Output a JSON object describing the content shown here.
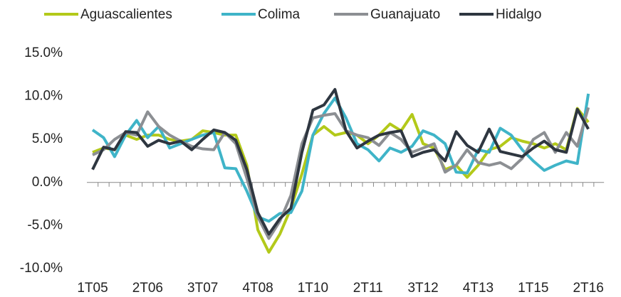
{
  "chart_data": {
    "type": "line",
    "categories": [
      "1T05",
      null,
      null,
      null,
      null,
      "2T06",
      null,
      null,
      null,
      null,
      "3T07",
      null,
      null,
      null,
      null,
      "4T08",
      null,
      null,
      null,
      null,
      "1T10",
      null,
      null,
      null,
      null,
      "2T11",
      null,
      null,
      null,
      null,
      "3T12",
      null,
      null,
      null,
      null,
      "4T13",
      null,
      null,
      null,
      null,
      "1T15",
      null,
      null,
      null,
      null,
      "2T16"
    ],
    "series": [
      {
        "name": "Aguascalientes",
        "color": "#b3c91a",
        "values": [
          3.5,
          4.0,
          3.8,
          5.5,
          5.0,
          5.5,
          5.5,
          5.0,
          4.8,
          5.0,
          6.0,
          5.8,
          5.5,
          5.5,
          2.0,
          -5.5,
          -8.1,
          -6.0,
          -3.0,
          1.0,
          5.5,
          6.5,
          5.5,
          5.8,
          5.5,
          4.5,
          5.5,
          6.8,
          6.0,
          7.9,
          4.5,
          4.0,
          1.5,
          2.0,
          0.6,
          2.0,
          3.8,
          4.2,
          5.2,
          4.8,
          4.5,
          4.0,
          4.5,
          3.8,
          8.6,
          7.0
        ]
      },
      {
        "name": "Colima",
        "color": "#3fb4c8",
        "values": [
          6.1,
          5.2,
          3.0,
          5.5,
          7.2,
          5.2,
          6.5,
          4.0,
          4.5,
          5.0,
          5.5,
          5.8,
          1.7,
          1.6,
          -1.0,
          -4.0,
          -4.5,
          -3.6,
          -3.5,
          -1.0,
          5.5,
          8.0,
          9.8,
          7.5,
          4.5,
          3.8,
          2.5,
          4.0,
          3.5,
          4.2,
          6.0,
          5.5,
          4.5,
          1.2,
          1.1,
          3.8,
          3.5,
          6.3,
          5.5,
          3.8,
          2.5,
          1.4,
          2.0,
          2.5,
          2.2,
          10.3
        ]
      },
      {
        "name": "Guanajuato",
        "color": "#8c8f93",
        "values": [
          3.2,
          3.8,
          5.0,
          5.8,
          5.5,
          8.2,
          6.5,
          5.5,
          4.8,
          4.2,
          3.9,
          3.8,
          5.8,
          4.5,
          0.5,
          -4.0,
          -6.5,
          -4.5,
          -1.5,
          4.5,
          7.5,
          7.8,
          8.0,
          6.0,
          5.5,
          5.2,
          4.3,
          5.8,
          5.0,
          3.5,
          4.0,
          4.5,
          1.2,
          2.0,
          3.8,
          2.3,
          2.0,
          2.3,
          1.6,
          2.8,
          5.0,
          5.8,
          3.5,
          5.8,
          4.2,
          8.7
        ]
      },
      {
        "name": "Hidalgo",
        "color": "#2e3640",
        "values": [
          1.5,
          4.1,
          3.8,
          5.9,
          5.8,
          4.2,
          4.9,
          4.5,
          4.8,
          3.8,
          5.0,
          6.1,
          5.8,
          4.9,
          1.5,
          -3.5,
          -6.0,
          -4.2,
          -3.0,
          3.5,
          8.4,
          9.0,
          10.8,
          6.0,
          4.0,
          4.8,
          5.5,
          5.8,
          6.0,
          3.0,
          3.5,
          3.8,
          2.5,
          5.9,
          4.3,
          3.5,
          6.2,
          3.6,
          3.3,
          3.0,
          4.0,
          4.8,
          3.8,
          3.5,
          8.5,
          6.2
        ]
      }
    ],
    "ylim": [
      -10,
      15
    ],
    "yticks": [
      {
        "value": -10,
        "label": "-10.0%"
      },
      {
        "value": -5,
        "label": "-5.0%"
      },
      {
        "value": 0,
        "label": "0.0%"
      },
      {
        "value": 5,
        "label": "5.0%"
      },
      {
        "value": 10,
        "label": "10.0%"
      },
      {
        "value": 15,
        "label": "15.0%"
      }
    ],
    "grid": false,
    "legend": "top"
  }
}
